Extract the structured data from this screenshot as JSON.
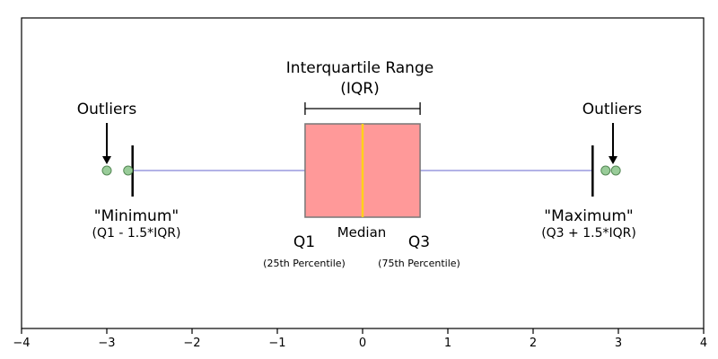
{
  "chart_data": {
    "type": "boxplot",
    "xlim": [
      -4,
      4
    ],
    "xticks": [
      -4,
      -3,
      -2,
      -1,
      0,
      1,
      2,
      3,
      4
    ],
    "xtick_labels": [
      "−4",
      "−3",
      "−2",
      "−1",
      "0",
      "1",
      "2",
      "3",
      "4"
    ],
    "grid": false,
    "box": {
      "q1": -0.6745,
      "median": 0,
      "q3": 0.6745,
      "whisker_low": -2.698,
      "whisker_high": 2.698,
      "outliers": [
        -3.0,
        -2.75,
        2.85,
        2.97
      ]
    },
    "colors": {
      "box_fill": "#ff9999",
      "box_edge": "#777777",
      "median_line": "#ffd11a",
      "whisker_line": "#9999dd",
      "cap_line": "#000000",
      "outlier_fill": "#99cc99",
      "outlier_edge": "#558855"
    },
    "annotations": {
      "iqr_title": "Interquartile Range",
      "iqr_sub": "(IQR)",
      "outliers_left": "Outliers",
      "outliers_right": "Outliers",
      "minimum": "\"Minimum\"",
      "minimum_formula": "(Q1 - 1.5*IQR)",
      "maximum": "\"Maximum\"",
      "maximum_formula": "(Q3 + 1.5*IQR)",
      "q1": "Q1",
      "q1_sub": "(25th Percentile)",
      "median": "Median",
      "q3": "Q3",
      "q3_sub": "(75th Percentile)"
    }
  }
}
